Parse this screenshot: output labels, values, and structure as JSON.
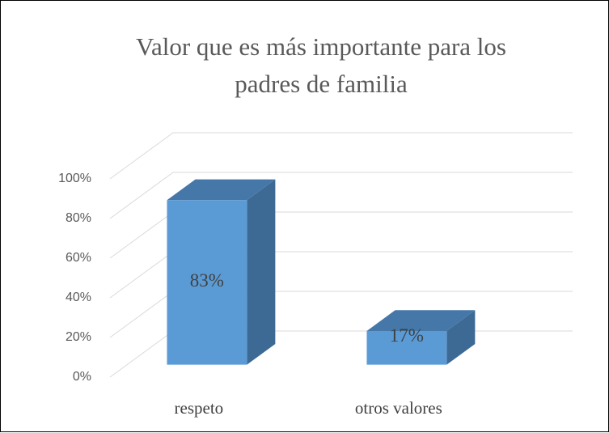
{
  "chart_data": {
    "type": "bar3d",
    "title": "Valor que es más importante para los padres de familia",
    "categories": [
      "respeto",
      "otros valores"
    ],
    "values": [
      83,
      17
    ],
    "value_labels": [
      "83%",
      "17%"
    ],
    "color": "#5b9bd5",
    "ylim": [
      0,
      100
    ],
    "yticks": [
      {
        "value": 0,
        "label": "0%"
      },
      {
        "value": 20,
        "label": "20%"
      },
      {
        "value": 40,
        "label": "40%"
      },
      {
        "value": 60,
        "label": "60%"
      },
      {
        "value": 80,
        "label": "80%"
      },
      {
        "value": 100,
        "label": "100%"
      }
    ],
    "grid": true
  }
}
